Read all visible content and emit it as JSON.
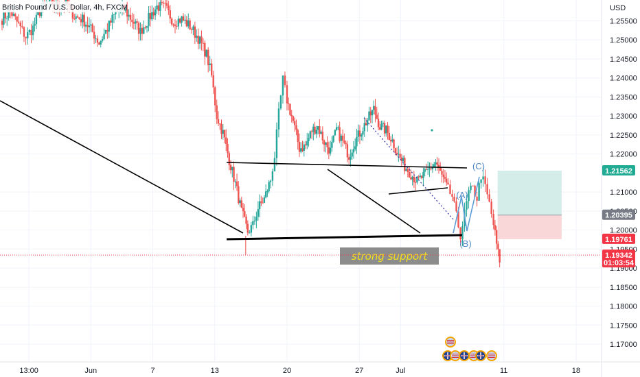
{
  "chart_data": {
    "type": "candlestick",
    "title": "British Pound / U.S. Dollar, 4h, FXCM",
    "currency_label": "USD",
    "ylim": [
      1.1655,
      1.2605
    ],
    "y_ticks": [
      "1.25500",
      "1.25000",
      "1.24500",
      "1.24000",
      "1.23500",
      "1.23000",
      "1.22500",
      "1.22000",
      "1.21000",
      "1.20500",
      "1.20000",
      "1.19500",
      "1.19000",
      "1.18500",
      "1.18000",
      "1.17500",
      "1.17000"
    ],
    "x_ticks": [
      {
        "label": "13:00",
        "day": 0
      },
      {
        "label": "Jun",
        "day": 6
      },
      {
        "label": "7",
        "day": 12
      },
      {
        "label": "13",
        "day": 18
      },
      {
        "label": "20",
        "day": 25
      },
      {
        "label": "27",
        "day": 32
      },
      {
        "label": "Jul",
        "day": 36
      },
      {
        "label": "11",
        "day": 46
      },
      {
        "label": "18",
        "day": 53
      }
    ],
    "x_range_days": [
      -2.8,
      55.4
    ],
    "price_tags": [
      {
        "value": "1.21562",
        "price": 1.21562,
        "color": "#22ab94",
        "time": ""
      },
      {
        "value": "1.20395",
        "price": 1.20395,
        "color": "#787b86",
        "time": ""
      },
      {
        "value": "1.19761",
        "price": 1.19761,
        "color": "#f23645",
        "time": ""
      },
      {
        "value": "1.19342",
        "price": 1.19342,
        "color": "#f23645",
        "time": "01:03:54"
      }
    ],
    "current_price": 1.19342,
    "candle_path": [
      [
        -2.6,
        1.2555
      ],
      [
        -1.8,
        1.2575
      ],
      [
        -1.0,
        1.254
      ],
      [
        -0.3,
        1.2508
      ],
      [
        0.4,
        1.2532
      ],
      [
        1.2,
        1.2585
      ],
      [
        2.0,
        1.2602
      ],
      [
        2.8,
        1.2588
      ],
      [
        3.6,
        1.26
      ],
      [
        4.4,
        1.2562
      ],
      [
        5.2,
        1.2554
      ],
      [
        6.0,
        1.2528
      ],
      [
        6.8,
        1.2492
      ],
      [
        7.6,
        1.253
      ],
      [
        8.4,
        1.2572
      ],
      [
        9.2,
        1.258
      ],
      [
        10.0,
        1.2552
      ],
      [
        10.8,
        1.2522
      ],
      [
        11.6,
        1.2556
      ],
      [
        12.4,
        1.2588
      ],
      [
        13.2,
        1.2585
      ],
      [
        14.0,
        1.2548
      ],
      [
        14.8,
        1.2555
      ],
      [
        15.6,
        1.2536
      ],
      [
        16.4,
        1.2505
      ],
      [
        17.2,
        1.2462
      ],
      [
        17.7,
        1.2405
      ],
      [
        18.2,
        1.23
      ],
      [
        18.8,
        1.2255
      ],
      [
        19.4,
        1.2185
      ],
      [
        20.0,
        1.2122
      ],
      [
        20.6,
        1.2048
      ],
      [
        21.2,
        1.1995
      ],
      [
        21.7,
        1.2012
      ],
      [
        22.2,
        1.2058
      ],
      [
        22.8,
        1.2082
      ],
      [
        23.4,
        1.2132
      ],
      [
        23.8,
        1.2195
      ],
      [
        24.2,
        1.2305
      ],
      [
        24.6,
        1.2395
      ],
      [
        25.0,
        1.2342
      ],
      [
        25.6,
        1.2285
      ],
      [
        26.2,
        1.2215
      ],
      [
        26.8,
        1.2222
      ],
      [
        27.4,
        1.2262
      ],
      [
        28.0,
        1.2272
      ],
      [
        28.6,
        1.2232
      ],
      [
        29.2,
        1.2208
      ],
      [
        29.8,
        1.2265
      ],
      [
        30.4,
        1.2232
      ],
      [
        31.0,
        1.2196
      ],
      [
        31.6,
        1.2235
      ],
      [
        32.2,
        1.2262
      ],
      [
        32.8,
        1.229
      ],
      [
        33.4,
        1.2318
      ],
      [
        34.0,
        1.2272
      ],
      [
        34.6,
        1.2262
      ],
      [
        35.2,
        1.2235
      ],
      [
        35.8,
        1.2196
      ],
      [
        36.4,
        1.2168
      ],
      [
        37.0,
        1.2148
      ],
      [
        37.6,
        1.2128
      ],
      [
        38.2,
        1.2142
      ],
      [
        38.8,
        1.216
      ],
      [
        39.4,
        1.2178
      ],
      [
        40.0,
        1.2142
      ],
      [
        40.6,
        1.2105
      ],
      [
        41.0,
        1.2088
      ],
      [
        41.4,
        1.2035
      ],
      [
        41.8,
        1.1988
      ],
      [
        42.2,
        1.2042
      ],
      [
        42.6,
        1.2098
      ],
      [
        43.0,
        1.2108
      ],
      [
        43.4,
        1.2085
      ],
      [
        43.8,
        1.2145
      ],
      [
        44.2,
        1.2112
      ],
      [
        44.6,
        1.2068
      ],
      [
        45.0,
        1.2015
      ],
      [
        45.3,
        1.1962
      ],
      [
        45.6,
        1.1915
      ]
    ],
    "seed": 7
  },
  "drawings": {
    "annotation_text": "strong support",
    "wave_labels": [
      "(A)",
      "(B)",
      "(C)"
    ]
  },
  "colors": {
    "up": "#26a69a",
    "down": "#ef5350",
    "grid": "#f0f3fa",
    "trendline": "#000000",
    "wave": "#5b9bd5",
    "target_zone": "#d5ede9",
    "stop_zone": "#f9d7d9"
  }
}
